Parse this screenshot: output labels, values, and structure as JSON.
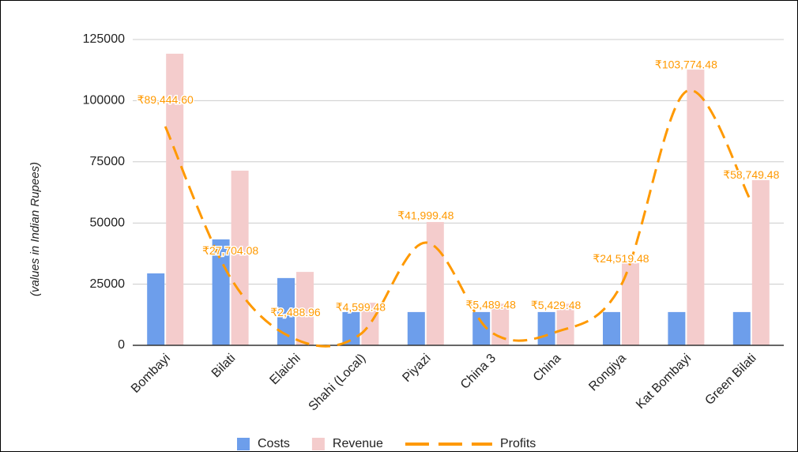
{
  "chart_data": {
    "type": "bar",
    "y_label": "(values in Indian Rupees)",
    "categories": [
      "Bombayi",
      "Bilati",
      "Elaichi",
      "Shahi (Local)",
      "Piyazi",
      "China 3",
      "China",
      "Rongiya",
      "Kat Bombayi",
      "Green Bilati"
    ],
    "series": [
      {
        "name": "Costs",
        "type": "bar",
        "color": "#6d9eeb",
        "values": [
          29400,
          43300,
          27500,
          13600,
          13600,
          13600,
          13600,
          13600,
          13600,
          13600
        ]
      },
      {
        "name": "Revenue",
        "type": "bar",
        "color": "#f4cccc",
        "values": [
          119200,
          71400,
          30000,
          17400,
          50400,
          17000,
          17000,
          33600,
          112700,
          67500
        ]
      },
      {
        "name": "Profits",
        "type": "line",
        "color": "#ff9900",
        "dashed": true,
        "values": [
          89444.6,
          27704.08,
          2488.96,
          4599.48,
          41999.48,
          5489.48,
          5429.48,
          24519.48,
          103774.48,
          58749.48
        ],
        "value_labels": [
          "₹89,444.60",
          "₹27,704.08",
          "₹2,488.96",
          "₹4,599.48",
          "₹41,999.48",
          "₹5,489.48",
          "₹5,429.48",
          "₹24,519.48",
          "₹103,774.48",
          "₹58,749.48"
        ]
      }
    ],
    "ylim": [
      0,
      125000
    ],
    "yticks": [
      0,
      25000,
      50000,
      75000,
      100000,
      125000
    ],
    "grid": true,
    "legend": "bottom"
  }
}
